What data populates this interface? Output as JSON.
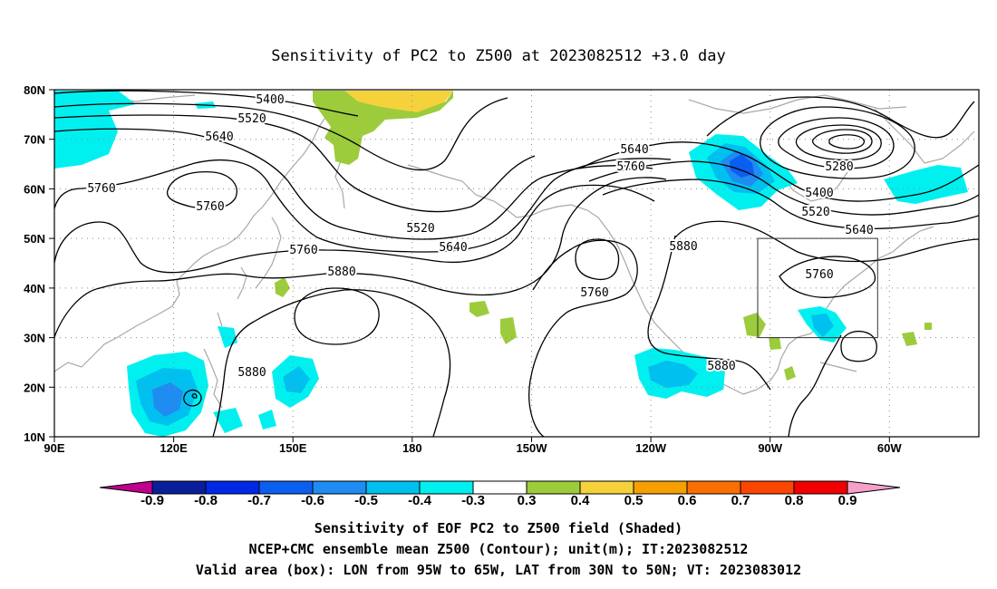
{
  "title": "Sensitivity of PC2 to Z500 at 2023082512 +3.0 day",
  "map": {
    "lat_labels": [
      "80N",
      "70N",
      "60N",
      "50N",
      "40N",
      "30N",
      "20N",
      "10N"
    ],
    "lon_labels": [
      "90E",
      "120E",
      "150E",
      "180",
      "150W",
      "120W",
      "90W",
      "60W"
    ],
    "extent": {
      "lon": [
        "90E",
        "50W"
      ],
      "lat": [
        "10N",
        "80N"
      ]
    },
    "grid": "dotted",
    "valid_area_box": {
      "lon": [
        "95W",
        "65W"
      ],
      "lat": [
        "30N",
        "50N"
      ]
    },
    "contour_labels": [
      "5400",
      "5520",
      "5640",
      "5760",
      "5760",
      "5520",
      "5640",
      "5640",
      "5760",
      "5760",
      "5760",
      "5880",
      "5880",
      "5280",
      "5400",
      "5520",
      "5640",
      "5760",
      "5880",
      "5880",
      "5880"
    ],
    "contour_interval_m": 120,
    "colors": {
      "coastline": "#a8a8a8",
      "contour": "#000000"
    }
  },
  "colorbar": {
    "labels": [
      "-0.9",
      "-0.8",
      "-0.7",
      "-0.6",
      "-0.5",
      "-0.4",
      "-0.3",
      "0.3",
      "0.4",
      "0.5",
      "0.6",
      "0.7",
      "0.8",
      "0.9"
    ],
    "colors": [
      "#c0008f",
      "#0a1e9a",
      "#0028e6",
      "#0a5ff0",
      "#1e8cf0",
      "#00c0f0",
      "#00f0f0",
      "#ffffff",
      "#9ccc3c",
      "#f5d23c",
      "#f5a000",
      "#fa7000",
      "#fa4600",
      "#f00000",
      "#f5a0c8"
    ]
  },
  "captions": [
    "Sensitivity of EOF PC2 to Z500 field (Shaded)",
    "NCEP+CMC ensemble mean Z500 (Contour); unit(m); IT:2023082512",
    "Valid area (box): LON from 95W to 65W, LAT from 30N to 50N; VT: 2023083012"
  ]
}
